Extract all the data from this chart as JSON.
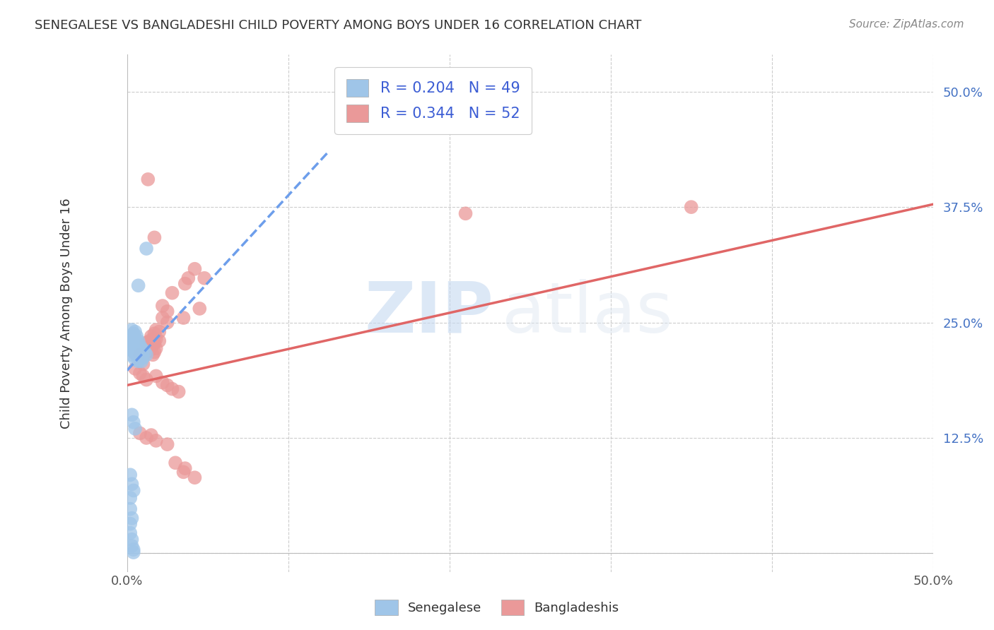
{
  "title": "SENEGALESE VS BANGLADESHI CHILD POVERTY AMONG BOYS UNDER 16 CORRELATION CHART",
  "source": "Source: ZipAtlas.com",
  "ylabel": "Child Poverty Among Boys Under 16",
  "xlim": [
    0.0,
    0.5
  ],
  "ylim": [
    -0.02,
    0.54
  ],
  "xticks": [
    0.0,
    0.1,
    0.2,
    0.3,
    0.4,
    0.5
  ],
  "yticks": [
    0.0,
    0.125,
    0.25,
    0.375,
    0.5
  ],
  "xticklabels": [
    "0.0%",
    "",
    "",
    "",
    "",
    "50.0%"
  ],
  "yticklabels": [
    "",
    "12.5%",
    "25.0%",
    "37.5%",
    "50.0%"
  ],
  "legend_entry1": "R = 0.204   N = 49",
  "legend_entry2": "R = 0.344   N = 52",
  "blue_color": "#9fc5e8",
  "pink_color": "#ea9999",
  "blue_line_color": "#6d9eeb",
  "pink_line_color": "#e06666",
  "blue_scatter": [
    [
      0.002,
      0.215
    ],
    [
      0.002,
      0.228
    ],
    [
      0.003,
      0.235
    ],
    [
      0.003,
      0.242
    ],
    [
      0.003,
      0.22
    ],
    [
      0.004,
      0.238
    ],
    [
      0.004,
      0.23
    ],
    [
      0.004,
      0.225
    ],
    [
      0.004,
      0.218
    ],
    [
      0.005,
      0.24
    ],
    [
      0.005,
      0.233
    ],
    [
      0.005,
      0.225
    ],
    [
      0.005,
      0.218
    ],
    [
      0.005,
      0.21
    ],
    [
      0.006,
      0.235
    ],
    [
      0.006,
      0.228
    ],
    [
      0.006,
      0.22
    ],
    [
      0.006,
      0.215
    ],
    [
      0.007,
      0.23
    ],
    [
      0.007,
      0.222
    ],
    [
      0.007,
      0.215
    ],
    [
      0.007,
      0.208
    ],
    [
      0.008,
      0.225
    ],
    [
      0.008,
      0.218
    ],
    [
      0.008,
      0.21
    ],
    [
      0.009,
      0.222
    ],
    [
      0.009,
      0.215
    ],
    [
      0.009,
      0.208
    ],
    [
      0.01,
      0.22
    ],
    [
      0.01,
      0.212
    ],
    [
      0.011,
      0.218
    ],
    [
      0.012,
      0.215
    ],
    [
      0.003,
      0.15
    ],
    [
      0.004,
      0.142
    ],
    [
      0.005,
      0.135
    ],
    [
      0.002,
      0.085
    ],
    [
      0.003,
      0.075
    ],
    [
      0.004,
      0.068
    ],
    [
      0.002,
      0.032
    ],
    [
      0.002,
      0.022
    ],
    [
      0.003,
      0.015
    ],
    [
      0.003,
      0.008
    ],
    [
      0.004,
      0.004
    ],
    [
      0.004,
      0.001
    ],
    [
      0.007,
      0.29
    ],
    [
      0.012,
      0.33
    ],
    [
      0.002,
      0.06
    ],
    [
      0.002,
      0.048
    ],
    [
      0.003,
      0.038
    ]
  ],
  "pink_scatter": [
    [
      0.005,
      0.2
    ],
    [
      0.008,
      0.215
    ],
    [
      0.01,
      0.205
    ],
    [
      0.012,
      0.218
    ],
    [
      0.012,
      0.228
    ],
    [
      0.014,
      0.23
    ],
    [
      0.014,
      0.22
    ],
    [
      0.015,
      0.235
    ],
    [
      0.015,
      0.225
    ],
    [
      0.016,
      0.232
    ],
    [
      0.016,
      0.225
    ],
    [
      0.016,
      0.215
    ],
    [
      0.017,
      0.238
    ],
    [
      0.017,
      0.228
    ],
    [
      0.017,
      0.218
    ],
    [
      0.018,
      0.242
    ],
    [
      0.018,
      0.232
    ],
    [
      0.018,
      0.222
    ],
    [
      0.02,
      0.24
    ],
    [
      0.02,
      0.23
    ],
    [
      0.022,
      0.268
    ],
    [
      0.022,
      0.255
    ],
    [
      0.025,
      0.262
    ],
    [
      0.025,
      0.25
    ],
    [
      0.028,
      0.282
    ],
    [
      0.035,
      0.255
    ],
    [
      0.038,
      0.298
    ],
    [
      0.042,
      0.308
    ],
    [
      0.045,
      0.265
    ],
    [
      0.048,
      0.298
    ],
    [
      0.008,
      0.195
    ],
    [
      0.01,
      0.192
    ],
    [
      0.012,
      0.188
    ],
    [
      0.018,
      0.192
    ],
    [
      0.022,
      0.185
    ],
    [
      0.025,
      0.182
    ],
    [
      0.028,
      0.178
    ],
    [
      0.032,
      0.175
    ],
    [
      0.008,
      0.13
    ],
    [
      0.012,
      0.125
    ],
    [
      0.015,
      0.128
    ],
    [
      0.018,
      0.122
    ],
    [
      0.025,
      0.118
    ],
    [
      0.03,
      0.098
    ],
    [
      0.035,
      0.088
    ],
    [
      0.042,
      0.082
    ],
    [
      0.013,
      0.405
    ],
    [
      0.017,
      0.342
    ],
    [
      0.036,
      0.292
    ],
    [
      0.21,
      0.368
    ],
    [
      0.35,
      0.375
    ],
    [
      0.036,
      0.092
    ]
  ],
  "blue_trend_x": [
    0.0,
    0.125
  ],
  "blue_trend_y": [
    0.198,
    0.435
  ],
  "pink_trend_x": [
    0.0,
    0.5
  ],
  "pink_trend_y": [
    0.182,
    0.378
  ],
  "grid_color": "#cccccc",
  "tick_color_y": "#4472c4",
  "tick_color_x": "#555555",
  "label_color": "#333333",
  "source_color": "#888888"
}
